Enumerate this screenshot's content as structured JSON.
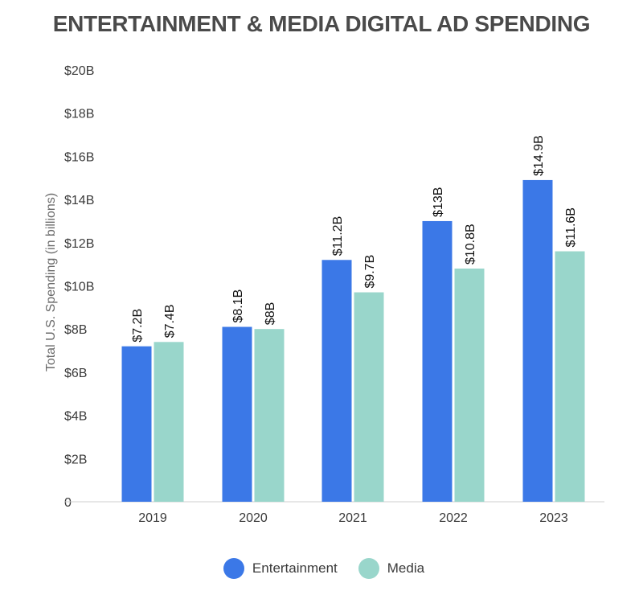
{
  "chart_data": {
    "type": "bar",
    "title": "ENTERTAINMENT & MEDIA DIGITAL AD SPENDING",
    "xlabel": "",
    "ylabel": "Total U.S. Spending (in billions)",
    "categories": [
      "2019",
      "2020",
      "2021",
      "2022",
      "2023"
    ],
    "ylim": [
      0,
      20
    ],
    "yticks": [
      {
        "value": 0,
        "label": "0"
      },
      {
        "value": 2,
        "label": "$2B"
      },
      {
        "value": 4,
        "label": "$4B"
      },
      {
        "value": 6,
        "label": "$6B"
      },
      {
        "value": 8,
        "label": "$8B"
      },
      {
        "value": 10,
        "label": "$10B"
      },
      {
        "value": 12,
        "label": "$12B"
      },
      {
        "value": 14,
        "label": "$14B"
      },
      {
        "value": 16,
        "label": "$16B"
      },
      {
        "value": 18,
        "label": "$18B"
      },
      {
        "value": 20,
        "label": "$20B"
      }
    ],
    "grid": false,
    "legend_position": "bottom",
    "series": [
      {
        "name": "Entertainment",
        "color": "#3b78e7",
        "values": [
          7.2,
          8.1,
          11.2,
          13,
          14.9
        ],
        "labels": [
          "$7.2B",
          "$8.1B",
          "$11.2B",
          "$13B",
          "$14.9B"
        ]
      },
      {
        "name": "Media",
        "color": "#99d6cb",
        "values": [
          7.4,
          8,
          9.7,
          10.8,
          11.6
        ],
        "labels": [
          "$7.4B",
          "$8B",
          "$9.7B",
          "$10.8B",
          "$11.6B"
        ]
      }
    ]
  }
}
